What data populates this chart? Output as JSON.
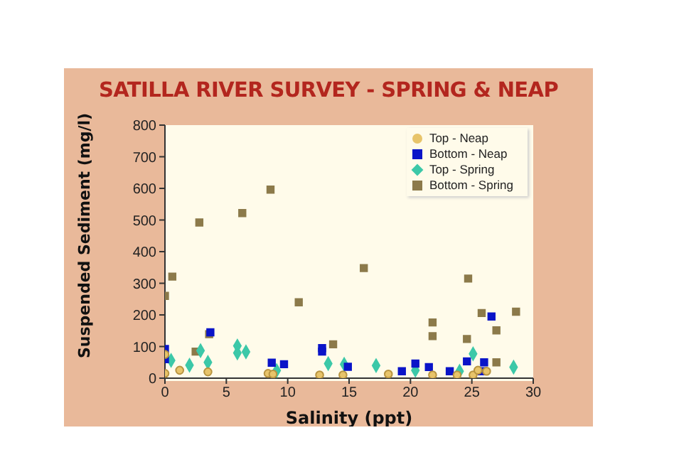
{
  "chart_data": {
    "type": "scatter",
    "title": "SATILLA RIVER SURVEY - SPRING & NEAP",
    "xlabel": "Salinity (ppt)",
    "ylabel": "Suspended Sediment (mg/l)",
    "xlim": [
      0,
      30
    ],
    "xticks": [
      0,
      5,
      10,
      15,
      20,
      25,
      30
    ],
    "ylim": [
      0,
      800
    ],
    "yticks": [
      0,
      100,
      200,
      300,
      400,
      500,
      600,
      700,
      800
    ],
    "grid": false,
    "legend": "top right",
    "series": [
      {
        "name": "Top - Neap",
        "color": "#e8c46a",
        "marker": "circle",
        "x": [
          0,
          0,
          1.2,
          3.5,
          8.4,
          8.8,
          12.6,
          14.5,
          18.2,
          21.8,
          23.8,
          25.1,
          25.5,
          26.2
        ],
        "values": [
          75,
          15,
          25,
          20,
          15,
          13,
          10,
          10,
          13,
          10,
          10,
          10,
          25,
          22
        ]
      },
      {
        "name": "Bottom - Neap",
        "color": "#0a14c8",
        "marker": "square",
        "x": [
          0,
          0,
          3.7,
          8.7,
          9.7,
          12.8,
          12.8,
          14.9,
          19.3,
          20.4,
          21.5,
          23.2,
          24.6,
          25.8,
          26,
          26.6
        ],
        "values": [
          92,
          60,
          145,
          49,
          44,
          95,
          84,
          36,
          22,
          46,
          35,
          22,
          53,
          22,
          50,
          195
        ]
      },
      {
        "name": "Top - Spring",
        "color": "#3cc8a8",
        "marker": "diamond",
        "x": [
          0.5,
          2,
          2.9,
          3.5,
          5.9,
          5.9,
          6.6,
          9.1,
          13.3,
          14.6,
          17.2,
          20.4,
          24,
          25.1,
          28.4
        ],
        "values": [
          56,
          41,
          87,
          50,
          102,
          80,
          83,
          24,
          46,
          44,
          40,
          25,
          22,
          77,
          35
        ]
      },
      {
        "name": "Bottom - Spring",
        "color": "#8c7a4a",
        "marker": "square",
        "x": [
          0,
          0.6,
          2.5,
          2.8,
          3.6,
          6.3,
          8.6,
          10.9,
          13.7,
          16.2,
          21.8,
          21.8,
          24.6,
          24.7,
          25.8,
          27,
          27,
          28.6
        ],
        "values": [
          260,
          321,
          84,
          492,
          139,
          522,
          596,
          240,
          107,
          348,
          176,
          133,
          124,
          315,
          206,
          151,
          50,
          210
        ]
      }
    ]
  }
}
